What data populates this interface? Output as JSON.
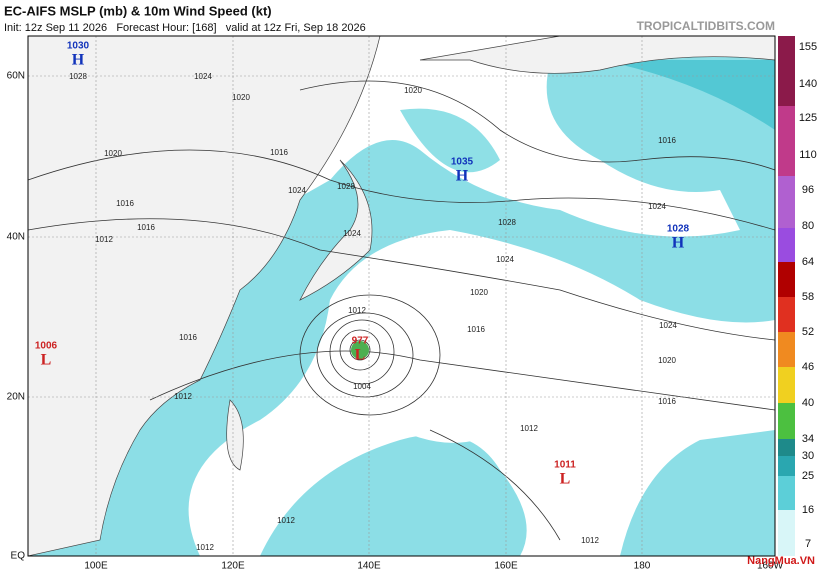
{
  "header": {
    "title": "EC-AIFS MSLP (mb) & 10m Wind Speed (kt)",
    "subtitle": "Init: 12z Sep 11 2026   Forecast Hour: [168]   valid at 12z Fri, Sep 18 2026",
    "site": "TROPICALTIDBITS.COM"
  },
  "axes": {
    "lat": [
      "60N",
      "40N",
      "20N",
      "EQ"
    ],
    "lon": [
      "100E",
      "120E",
      "140E",
      "160E",
      "180",
      "160W"
    ]
  },
  "centers": [
    {
      "type": "H",
      "value": 1030
    },
    {
      "type": "H",
      "value": 1035
    },
    {
      "type": "H",
      "value": 1028
    },
    {
      "type": "L",
      "value": 977
    },
    {
      "type": "L",
      "value": 1006
    },
    {
      "type": "L",
      "value": 1011
    }
  ],
  "isobar_labels": [
    1028,
    1024,
    1020,
    1020,
    1020,
    1016,
    1024,
    1028,
    1016,
    1024,
    1012,
    1016,
    1028,
    1024,
    1024,
    1020,
    1016,
    1012,
    1004,
    1012,
    1024,
    1020,
    1016,
    1012,
    1016,
    1012,
    1012,
    1012,
    1016
  ],
  "colorbar": {
    "labels": [
      155,
      140,
      125,
      110,
      96,
      80,
      64,
      58,
      52,
      46,
      40,
      34,
      30,
      25,
      16,
      7
    ]
  },
  "watermark": "NangMua.VN"
}
